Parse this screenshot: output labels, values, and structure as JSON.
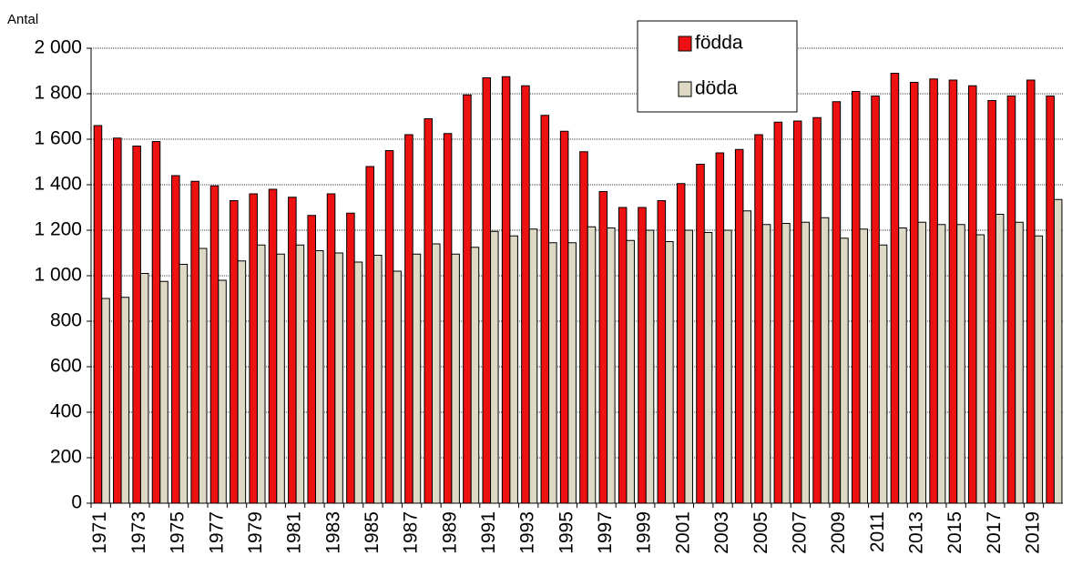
{
  "chart_data": {
    "type": "bar",
    "y_label": "Antal",
    "categories": [
      "1971",
      null,
      "1973",
      null,
      "1975",
      null,
      "1977",
      null,
      "1979",
      null,
      "1981",
      null,
      "1983",
      null,
      "1985",
      null,
      "1987",
      null,
      "1989",
      null,
      "1991",
      null,
      "1993",
      null,
      "1995",
      null,
      "1997",
      null,
      "1999",
      null,
      "2001",
      null,
      "2003",
      null,
      "2005",
      null,
      "2007",
      null,
      "2009",
      null,
      "2011",
      null,
      "2013",
      null,
      "2015",
      null,
      "2017",
      null,
      "2019",
      null
    ],
    "series": [
      {
        "name": "födda",
        "color": "#ee1111",
        "values": [
          1660,
          1605,
          1570,
          1590,
          1440,
          1415,
          1395,
          1330,
          1360,
          1380,
          1345,
          1265,
          1360,
          1275,
          1480,
          1550,
          1620,
          1690,
          1625,
          1795,
          1870,
          1875,
          1835,
          1705,
          1635,
          1545,
          1370,
          1300,
          1300,
          1330,
          1405,
          1490,
          1540,
          1555,
          1620,
          1675,
          1680,
          1695,
          1765,
          1810,
          1790,
          1890,
          1850,
          1865,
          1860,
          1835,
          1770,
          1790,
          1860,
          1790
        ]
      },
      {
        "name": "döda",
        "color": "#ddd9c4",
        "values": [
          900,
          905,
          1010,
          975,
          1050,
          1120,
          980,
          1065,
          1135,
          1095,
          1135,
          1110,
          1100,
          1060,
          1090,
          1020,
          1095,
          1140,
          1095,
          1125,
          1195,
          1175,
          1205,
          1145,
          1145,
          1215,
          1210,
          1155,
          1200,
          1150,
          1200,
          1190,
          1200,
          1285,
          1225,
          1230,
          1235,
          1255,
          1165,
          1205,
          1135,
          1210,
          1235,
          1225,
          1225,
          1180,
          1270,
          1235,
          1175,
          1335
        ]
      }
    ],
    "ylim": [
      0,
      2000
    ],
    "yticks": [
      0,
      200,
      400,
      600,
      800,
      {
        "value": 1000,
        "label": "1 000"
      },
      {
        "value": 1200,
        "label": "1 200"
      },
      {
        "value": 1400,
        "label": "1 400"
      },
      {
        "value": 1600,
        "label": "1 600"
      },
      {
        "value": 1800,
        "label": "1 800"
      },
      {
        "value": 2000,
        "label": "2 000"
      }
    ],
    "grid": true
  }
}
